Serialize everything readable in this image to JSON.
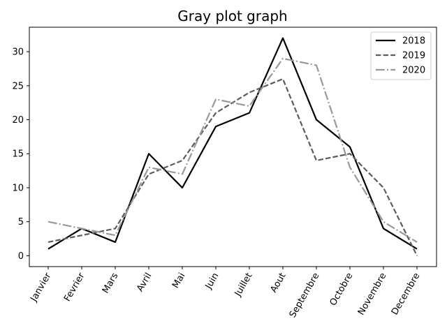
{
  "chart_data": {
    "type": "line",
    "title": "Gray plot graph",
    "xlabel": "",
    "ylabel": "",
    "categories": [
      "Janvier",
      "Fevrier",
      "Mars",
      "Avril",
      "Mai",
      "Juin",
      "Juillet",
      "Aout",
      "Septembre",
      "Octobre",
      "Novembre",
      "Decembre"
    ],
    "ylim": [
      -1.6,
      33.6
    ],
    "yticks": [
      0,
      5,
      10,
      15,
      20,
      25,
      30
    ],
    "grid": false,
    "legend_position": "top-right",
    "series": [
      {
        "name": "2018",
        "values": [
          1,
          4,
          2,
          15,
          10,
          19,
          21,
          32,
          20,
          16,
          4,
          1
        ],
        "color": "#000000",
        "style": "solid"
      },
      {
        "name": "2019",
        "values": [
          2,
          3,
          4,
          12,
          14,
          21,
          24,
          26,
          14,
          15,
          10,
          0
        ],
        "color": "#5c5c5c",
        "style": "dashed"
      },
      {
        "name": "2020",
        "values": [
          5,
          4,
          3,
          13,
          12,
          23,
          22,
          29,
          28,
          13,
          5,
          2
        ],
        "color": "#999999",
        "style": "dashdot"
      }
    ]
  }
}
